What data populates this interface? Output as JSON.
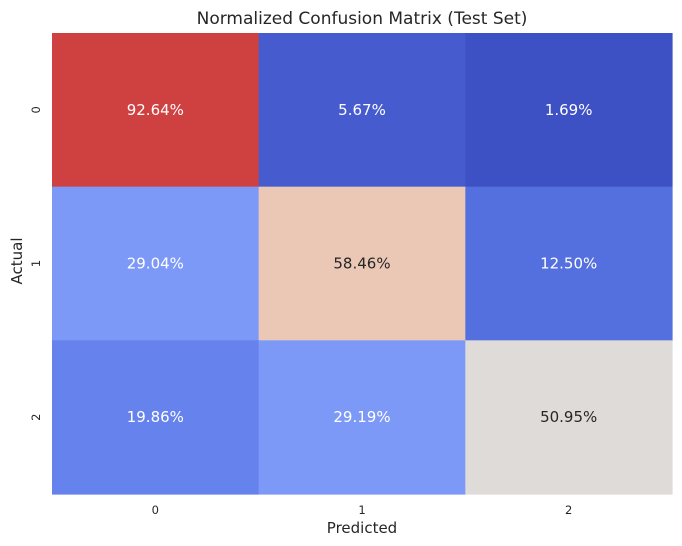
{
  "chart_data": {
    "type": "heatmap",
    "title": "Normalized Confusion Matrix (Test Set)",
    "xlabel": "Predicted",
    "ylabel": "Actual",
    "x_categories": [
      "0",
      "1",
      "2"
    ],
    "y_categories": [
      "0",
      "1",
      "2"
    ],
    "values": [
      [
        92.64,
        5.67,
        1.69
      ],
      [
        29.04,
        58.46,
        12.5
      ],
      [
        19.86,
        29.19,
        50.95
      ]
    ],
    "cell_labels": [
      [
        "92.64%",
        "5.67%",
        "1.69%"
      ],
      [
        "29.04%",
        "58.46%",
        "12.50%"
      ],
      [
        "19.86%",
        "29.19%",
        "50.95%"
      ]
    ],
    "value_unit": "%",
    "colormap": "coolwarm",
    "value_range": [
      0,
      100
    ],
    "colorbar": false,
    "grid": false,
    "legend": "none",
    "colors": {
      "text_on_dark": "#ffffff",
      "text_on_light": "#262626",
      "axis_text": "#262626"
    }
  }
}
